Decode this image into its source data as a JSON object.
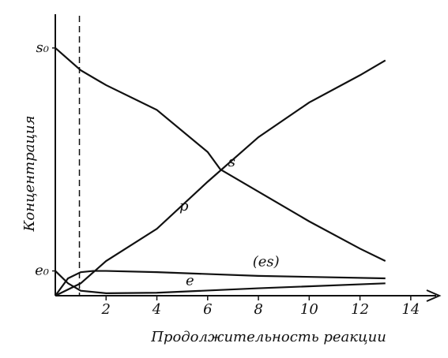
{
  "chart_data": {
    "type": "line",
    "xlabel": "Продолжительность реакции",
    "ylabel": "Концентрация",
    "xlim": [
      0,
      15
    ],
    "xticks": [
      2,
      4,
      6,
      8,
      10,
      12,
      14
    ],
    "ylim": [
      0,
      1.13
    ],
    "yticks": [
      {
        "value": 1.0,
        "label": "s₀"
      },
      {
        "value": 0.1,
        "label": "e₀"
      }
    ],
    "grid": false,
    "reference_x": 0.95,
    "series": [
      {
        "name": "s",
        "color": "#111111",
        "x": [
          0,
          1,
          2,
          4,
          6,
          6.5,
          8,
          10,
          12,
          13
        ],
        "values": [
          1.0,
          0.91,
          0.85,
          0.75,
          0.58,
          0.51,
          0.42,
          0.3,
          0.19,
          0.14
        ]
      },
      {
        "name": "p",
        "color": "#111111",
        "x": [
          0,
          1,
          2,
          4,
          6,
          8,
          10,
          12,
          13
        ],
        "values": [
          0,
          0.05,
          0.14,
          0.27,
          0.46,
          0.64,
          0.78,
          0.89,
          0.95
        ]
      },
      {
        "name": "(es)",
        "color": "#111111",
        "x": [
          0,
          0.5,
          1,
          1.5,
          2,
          4,
          8,
          13
        ],
        "values": [
          0,
          0.07,
          0.095,
          0.1,
          0.1,
          0.095,
          0.08,
          0.07
        ]
      },
      {
        "name": "e",
        "color": "#111111",
        "x": [
          0,
          0.5,
          1,
          2,
          4,
          8,
          13
        ],
        "values": [
          0.1,
          0.05,
          0.02,
          0.01,
          0.012,
          0.03,
          0.05
        ]
      }
    ]
  }
}
